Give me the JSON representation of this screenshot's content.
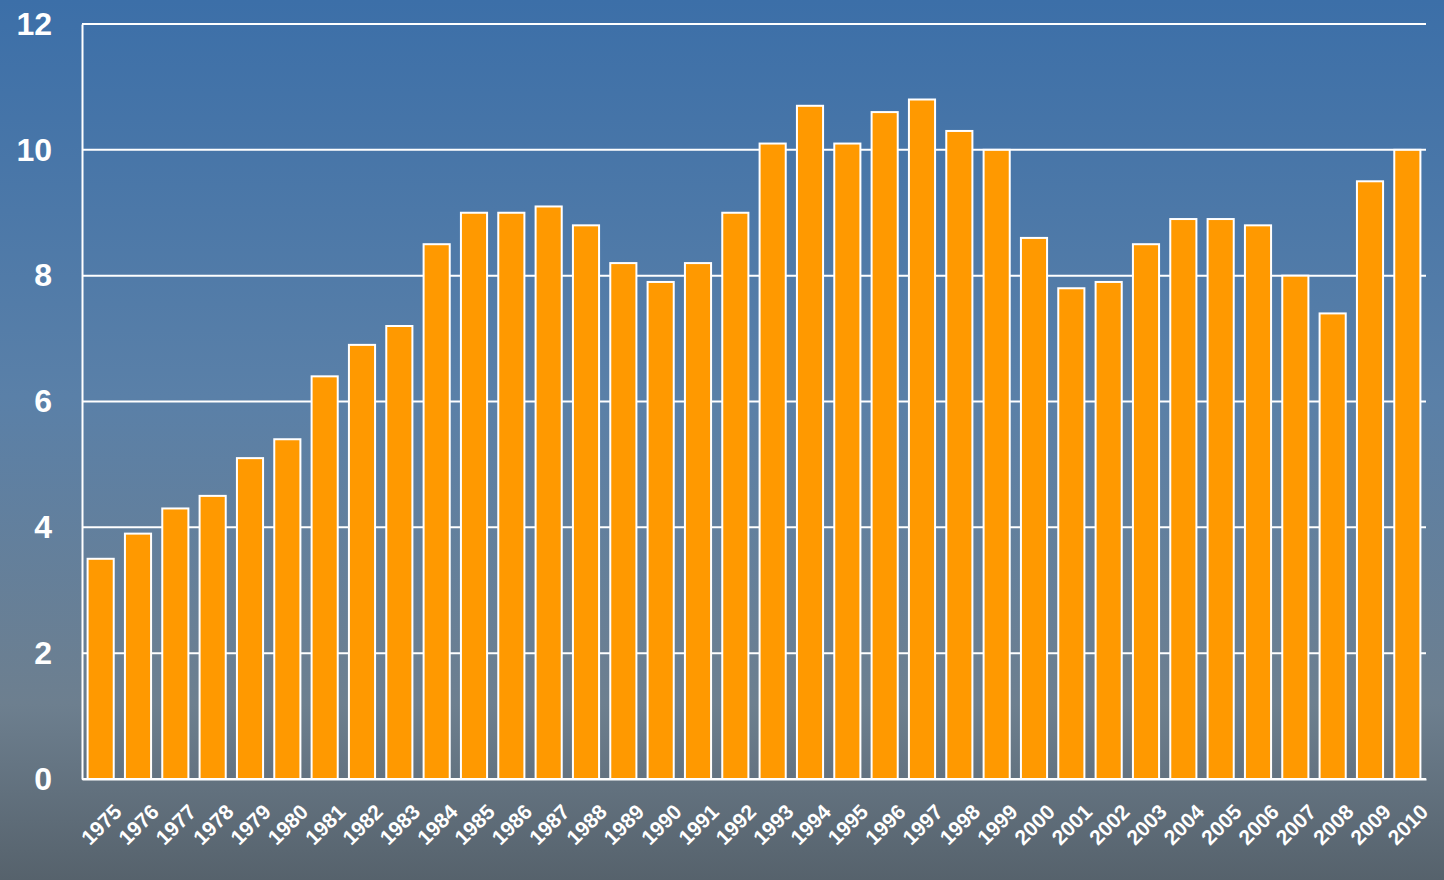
{
  "chart_data": {
    "type": "bar",
    "categories": [
      "1975",
      "1976",
      "1977",
      "1978",
      "1979",
      "1980",
      "1981",
      "1982",
      "1983",
      "1984",
      "1985",
      "1986",
      "1987",
      "1988",
      "1989",
      "1990",
      "1991",
      "1992",
      "1993",
      "1994",
      "1995",
      "1996",
      "1997",
      "1998",
      "1999",
      "2000",
      "2001",
      "2002",
      "2003",
      "2004",
      "2005",
      "2006",
      "2007",
      "2008",
      "2009",
      "2010"
    ],
    "values": [
      3.5,
      3.9,
      4.3,
      4.5,
      5.1,
      5.4,
      6.4,
      6.9,
      7.2,
      8.5,
      9.0,
      9.0,
      9.1,
      8.8,
      8.2,
      7.9,
      8.2,
      9.0,
      10.1,
      10.7,
      10.1,
      10.6,
      10.8,
      10.3,
      10.0,
      8.6,
      7.8,
      7.9,
      8.5,
      8.9,
      8.9,
      8.8,
      8.0,
      7.4,
      9.5,
      10.0
    ],
    "color": "#ff9900",
    "ylim": [
      0,
      12
    ],
    "yticks": [
      0,
      2,
      4,
      6,
      8,
      10,
      12
    ],
    "grid": true
  }
}
